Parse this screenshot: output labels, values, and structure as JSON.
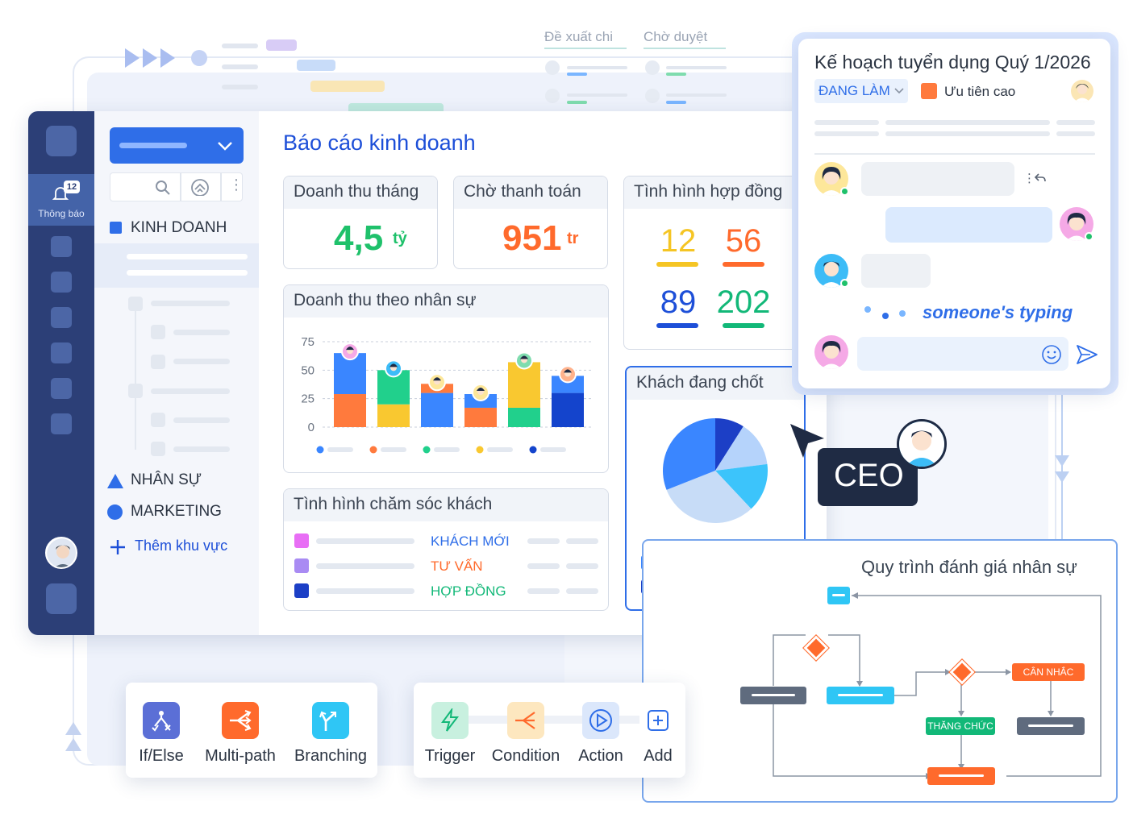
{
  "approvals": {
    "tab1": "Đề xuất chi",
    "tab2": "Chờ duyệt"
  },
  "sidebar": {
    "notif_count": "12",
    "notif_label": "Thông báo"
  },
  "nav": {
    "section1": "KINH DOANH",
    "section2": "NHÂN SỰ",
    "section3": "MARKETING",
    "add_area": "Thêm khu vực"
  },
  "report": {
    "title": "Báo cáo kinh doanh",
    "revenue": {
      "label": "Doanh thu tháng",
      "value": "4,5",
      "unit": "tỷ"
    },
    "pending": {
      "label": "Chờ thanh toán",
      "value": "951",
      "unit": "tr"
    },
    "contracts": {
      "label": "Tình hình hợp đồng",
      "v1": "12",
      "v2": "56",
      "v3": "89",
      "v4": "202"
    },
    "closing": {
      "label": "Khách đang chốt"
    },
    "care": {
      "label": "Tình hình chăm sóc khách",
      "s1": "KHÁCH MỚI",
      "s2": "TƯ VẤN",
      "s3": "HỢP ĐỒNG"
    }
  },
  "chart_data": [
    {
      "type": "bar",
      "title": "Doanh thu theo nhân sự",
      "ylim": [
        0,
        75
      ],
      "yticks": [
        "75",
        "50",
        "25",
        "0"
      ],
      "categories": [
        "",
        "",
        "",
        "",
        "",
        ""
      ],
      "stacks": [
        [
          {
            "v": 29,
            "c": "#ff7a3d"
          },
          {
            "v": 36,
            "c": "#3a86ff"
          }
        ],
        [
          {
            "v": 20,
            "c": "#f9c830"
          },
          {
            "v": 30,
            "c": "#21d08c"
          }
        ],
        [
          {
            "v": 30,
            "c": "#3a86ff"
          },
          {
            "v": 8,
            "c": "#ff7a3d"
          }
        ],
        [
          {
            "v": 17,
            "c": "#ff7a3d"
          },
          {
            "v": 12,
            "c": "#3a86ff"
          }
        ],
        [
          {
            "v": 17,
            "c": "#21d08c"
          },
          {
            "v": 40,
            "c": "#f9c830"
          }
        ],
        [
          {
            "v": 30,
            "c": "#1444cc"
          },
          {
            "v": 15,
            "c": "#3a86ff"
          }
        ]
      ],
      "legend_colors": [
        "#3a86ff",
        "#ff7a3d",
        "#21d08c",
        "#f9c830",
        "#1444cc"
      ]
    },
    {
      "type": "pie",
      "title": "Khách đang chốt",
      "slices": [
        {
          "v": 9,
          "c": "#1c3fc6"
        },
        {
          "v": 14,
          "c": "#b5d3fb"
        },
        {
          "v": 15,
          "c": "#3cc4fb"
        },
        {
          "v": 31,
          "c": "#c7dcf7"
        },
        {
          "v": 31,
          "c": "#3a86ff"
        }
      ]
    }
  ],
  "task": {
    "title": "Kế hoạch tuyển dụng Quý 1/2026",
    "status": "ĐANG LÀM",
    "priority": "Ưu tiên cao",
    "typing": "someone's typing"
  },
  "ceo_label": "CEO",
  "workflow": {
    "title": "Quy trình đánh giá nhân sự",
    "node_consider": "CÂN NHẮC",
    "node_promote": "THĂNG CHỨC"
  },
  "tools_left": [
    "If/Else",
    "Multi-path",
    "Branching"
  ],
  "tools_right": [
    "Trigger",
    "Condition",
    "Action",
    "Add"
  ],
  "colors": {
    "navy": "#2c3f77",
    "blue": "#1d4fd8",
    "green": "#1fc16b",
    "orange": "#ff6a2c"
  }
}
